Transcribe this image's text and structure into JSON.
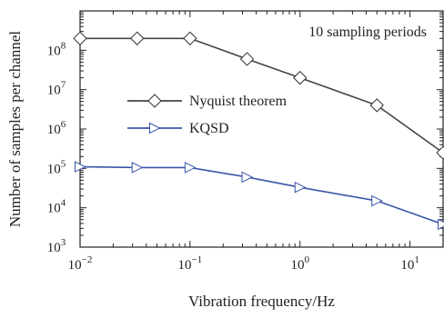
{
  "chart_data": {
    "type": "line",
    "xlabel": "Vibration frequency/Hz",
    "ylabel": "Number of samples per channel",
    "annotation": "10 sampling periods",
    "xscale": "log",
    "yscale": "log",
    "xlim": [
      0.01,
      20
    ],
    "ylim": [
      1000,
      1000000000
    ],
    "x_ticks": [
      {
        "value": 0.01,
        "base": "10",
        "exp": "−2"
      },
      {
        "value": 0.1,
        "base": "10",
        "exp": "−1"
      },
      {
        "value": 1,
        "base": "10",
        "exp": "0"
      },
      {
        "value": 10,
        "base": "10",
        "exp": "1"
      }
    ],
    "y_ticks": [
      {
        "value": 1000,
        "base": "10",
        "exp": "3"
      },
      {
        "value": 10000,
        "base": "10",
        "exp": "4"
      },
      {
        "value": 100000,
        "base": "10",
        "exp": "5"
      },
      {
        "value": 1000000,
        "base": "10",
        "exp": "6"
      },
      {
        "value": 10000000,
        "base": "10",
        "exp": "7"
      },
      {
        "value": 100000000,
        "base": "10",
        "exp": "8"
      }
    ],
    "legend": {
      "placement": "center-left"
    },
    "series": [
      {
        "name": "Nyquist theorem",
        "color": "#444444",
        "marker": "diamond",
        "x": [
          0.01,
          0.033,
          0.1,
          0.33,
          1,
          5,
          20
        ],
        "y": [
          200000000,
          200000000,
          200000000,
          60000000,
          20000000,
          4000000,
          250000
        ]
      },
      {
        "name": "KQSD",
        "color": "#3a55a8",
        "marker": "triangle-right",
        "x": [
          0.01,
          0.033,
          0.1,
          0.33,
          1,
          5,
          20
        ],
        "y": [
          110000,
          105000,
          105000,
          60000,
          33000,
          15000,
          3800
        ]
      }
    ]
  }
}
